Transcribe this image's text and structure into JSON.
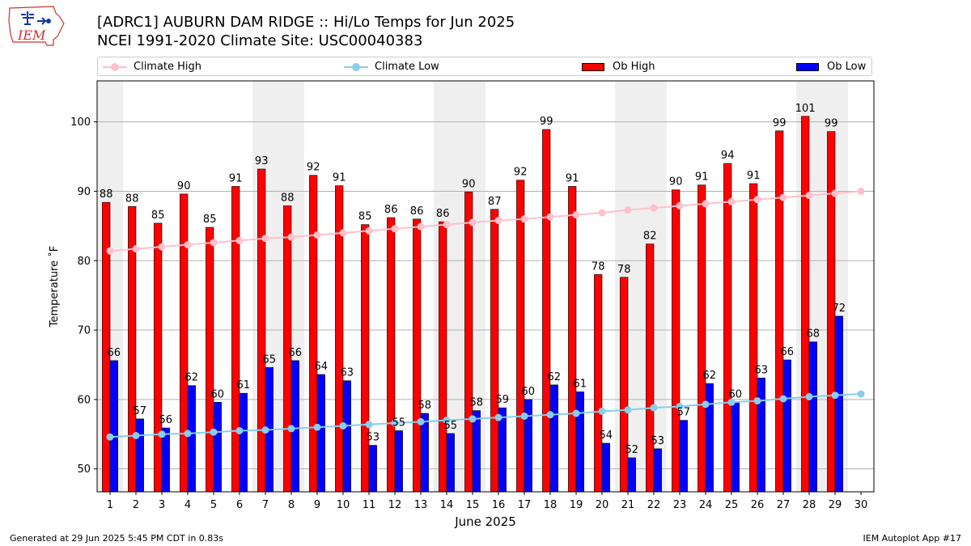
{
  "page": {
    "title_line1": "[ADRC1] AUBURN DAM RIDGE :: Hi/Lo Temps for Jun 2025",
    "title_line2": "NCEI 1991-2020 Climate Site: USC00040383",
    "footer_left": "Generated at 29 Jun 2025 5:45 PM CDT in 0.83s",
    "footer_right": "IEM Autoplot App #17",
    "logo_text": "IEM"
  },
  "legend": {
    "climate_high": "Climate High",
    "climate_low": "Climate Low",
    "ob_high": "Ob High",
    "ob_low": "Ob Low"
  },
  "colors": {
    "ob_high": "#ff0000",
    "ob_low": "#0000ff",
    "climate_high": "#ffc0cb",
    "climate_low": "#87ceeb",
    "weekend_band": "#efefef",
    "grid": "#b0b0b0"
  },
  "chart_data": {
    "type": "bar",
    "title": "[ADRC1] AUBURN DAM RIDGE :: Hi/Lo Temps for Jun 2025",
    "subtitle": "NCEI 1991-2020 Climate Site: USC00040383",
    "xlabel": "June 2025",
    "ylabel": "Temperature ˚F",
    "ylim": [
      46.7,
      105.9
    ],
    "yticks": [
      50,
      60,
      70,
      80,
      90,
      100
    ],
    "grid": "y",
    "legend_position": "top",
    "categories": [
      "1",
      "2",
      "3",
      "4",
      "5",
      "6",
      "7",
      "8",
      "9",
      "10",
      "11",
      "12",
      "13",
      "14",
      "15",
      "16",
      "17",
      "18",
      "19",
      "20",
      "21",
      "22",
      "23",
      "24",
      "25",
      "26",
      "27",
      "28",
      "29",
      "30"
    ],
    "series": [
      {
        "name": "Ob High",
        "type": "bar",
        "values": [
          88.4,
          87.8,
          85.4,
          89.6,
          84.8,
          90.7,
          93.2,
          87.9,
          92.3,
          90.8,
          85.2,
          86.2,
          86.0,
          85.6,
          89.9,
          87.4,
          91.6,
          98.9,
          90.7,
          78.0,
          77.6,
          82.4,
          90.2,
          90.9,
          94.0,
          91.1,
          98.7,
          100.8,
          98.6,
          null
        ],
        "labels": [
          "88",
          "88",
          "85",
          "90",
          "85",
          "91",
          "93",
          "88",
          "92",
          "91",
          "85",
          "86",
          "86",
          "86",
          "90",
          "87",
          "92",
          "99",
          "91",
          "78",
          "78",
          "82",
          "90",
          "91",
          "94",
          "91",
          "99",
          "101",
          "99",
          ""
        ]
      },
      {
        "name": "Ob Low",
        "type": "bar",
        "values": [
          65.6,
          57.2,
          55.9,
          62.0,
          59.6,
          60.9,
          64.6,
          65.6,
          63.6,
          62.7,
          53.4,
          55.5,
          58.0,
          55.1,
          58.4,
          58.8,
          60.0,
          62.1,
          61.1,
          53.7,
          51.6,
          52.9,
          57.0,
          62.3,
          59.6,
          63.1,
          65.7,
          68.3,
          72.0,
          null
        ],
        "labels": [
          "66",
          "57",
          "56",
          "62",
          "60",
          "61",
          "65",
          "66",
          "64",
          "63",
          "53",
          "55",
          "58",
          "55",
          "58",
          "59",
          "60",
          "62",
          "61",
          "54",
          "52",
          "53",
          "57",
          "62",
          "60",
          "63",
          "66",
          "68",
          "72",
          ""
        ]
      },
      {
        "name": "Climate High",
        "type": "line",
        "values": [
          81.4,
          81.7,
          82.0,
          82.3,
          82.6,
          82.9,
          83.2,
          83.4,
          83.7,
          84.0,
          84.3,
          84.6,
          84.9,
          85.2,
          85.5,
          85.8,
          86.0,
          86.3,
          86.6,
          86.9,
          87.3,
          87.6,
          87.9,
          88.2,
          88.5,
          88.8,
          89.1,
          89.4,
          89.7,
          90.0
        ]
      },
      {
        "name": "Climate Low",
        "type": "line",
        "values": [
          54.6,
          54.8,
          55.0,
          55.1,
          55.3,
          55.5,
          55.6,
          55.8,
          56.0,
          56.2,
          56.4,
          56.6,
          56.8,
          57.0,
          57.2,
          57.4,
          57.6,
          57.8,
          58.0,
          58.3,
          58.5,
          58.8,
          59.0,
          59.3,
          59.6,
          59.8,
          60.1,
          60.4,
          60.6,
          60.8
        ]
      }
    ],
    "weekend_days": [
      1,
      7,
      8,
      14,
      15,
      21,
      22,
      28,
      29
    ]
  }
}
